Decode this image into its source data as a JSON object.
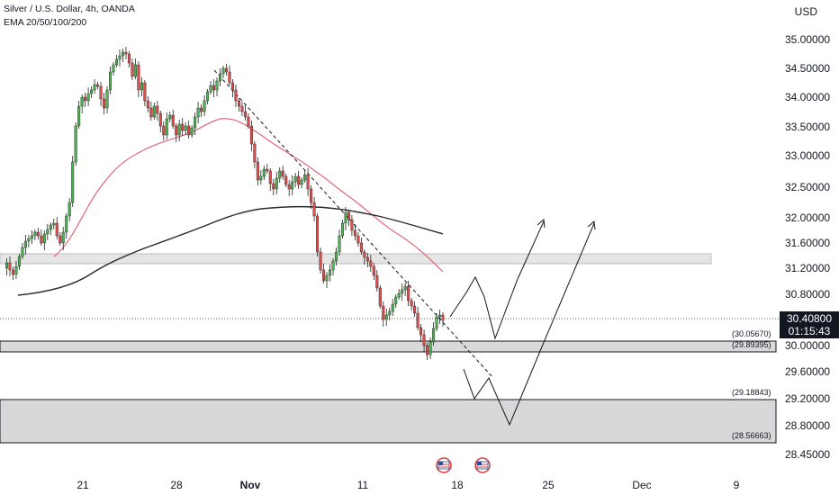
{
  "header": {
    "symbol_line": "Silver / U.S. Dollar, 4h, OANDA",
    "indicator_line": "EMA 20/50/100/200",
    "currency": "USD"
  },
  "price_tag": {
    "price": "30.40800",
    "countdown": "01:15:43"
  },
  "chart_data": {
    "type": "candlestick",
    "x_ticks": [
      "21",
      "28",
      "Nov",
      "11",
      "18",
      "25",
      "Dec",
      "9"
    ],
    "y_ticks": [
      "35.00000",
      "34.50000",
      "34.00000",
      "33.50000",
      "33.00000",
      "32.50000",
      "32.00000",
      "31.60000",
      "31.20000",
      "30.80000",
      "30.00000",
      "29.60000",
      "29.20000",
      "28.80000",
      "28.45000"
    ],
    "current_price": 30.408,
    "zones": [
      {
        "name": "resistance-zone",
        "top": 31.38,
        "bottom": 31.25,
        "color": "#e6e6e6"
      },
      {
        "name": "support-zone-near",
        "top": 30.0567,
        "bottom": 29.89395,
        "color": "#d9d9d9"
      },
      {
        "name": "support-zone-deep",
        "top": 29.18843,
        "bottom": 28.56663,
        "color": "#d6d6d6"
      }
    ],
    "zone_labels": [
      "(30.05670)",
      "(29.89395)",
      "(29.18843)",
      "(28.56663)"
    ],
    "ema_colors": {
      "ema_short": "#e2687a",
      "ema_long": "#2a2a2a"
    },
    "candle_colors": {
      "up": "#4caf50",
      "down": "#e04b4b"
    }
  }
}
